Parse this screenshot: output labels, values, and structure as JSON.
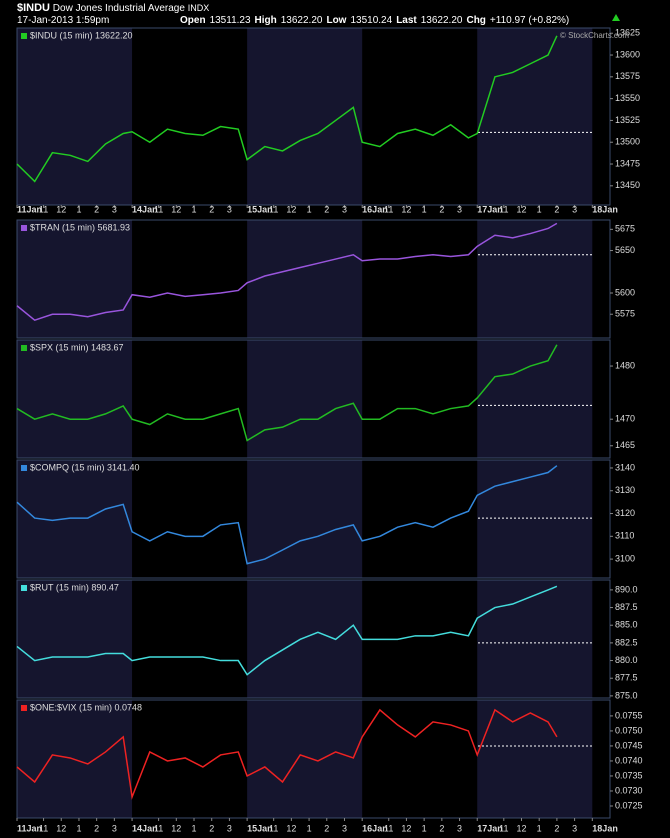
{
  "header": {
    "symbol": "$INDU",
    "name": "Dow Jones Industrial Average",
    "exchange": "INDX",
    "datetime": "17-Jan-2013 1:59pm",
    "quote": [
      {
        "label": "Open",
        "value": "13511.23"
      },
      {
        "label": "High",
        "value": "13622.20"
      },
      {
        "label": "Low",
        "value": "13510.24"
      },
      {
        "label": "Last",
        "value": "13622.20"
      },
      {
        "label": "Chg",
        "value": "+110.97 (+0.82%)"
      }
    ],
    "watermark": "© StockCharts.com"
  },
  "chart_data": [
    {
      "type": "line",
      "x": [
        0,
        1,
        2,
        3,
        4,
        5,
        6,
        6.5,
        7.5,
        8.5,
        9.5,
        10.5,
        11.5,
        12.5,
        13,
        14,
        15,
        16,
        17,
        18,
        19,
        19.5,
        20.5,
        21.5,
        22.5,
        23.5,
        24.5,
        25.5,
        26,
        27,
        28,
        29,
        30,
        30.5
      ],
      "xlim": [
        0,
        33.5
      ],
      "xticks": [
        {
          "value": 0,
          "label": "11Jan"
        },
        {
          "value": 1.5,
          "label": "11"
        },
        {
          "value": 2.5,
          "label": "12"
        },
        {
          "value": 3.5,
          "label": "1"
        },
        {
          "value": 4.5,
          "label": "2"
        },
        {
          "value": 5.5,
          "label": "3"
        },
        {
          "value": 6.5,
          "label": "14Jan"
        },
        {
          "value": 8,
          "label": "11"
        },
        {
          "value": 9,
          "label": "12"
        },
        {
          "value": 10,
          "label": "1"
        },
        {
          "value": 11,
          "label": "2"
        },
        {
          "value": 12,
          "label": "3"
        },
        {
          "value": 13,
          "label": "15Jan"
        },
        {
          "value": 14.5,
          "label": "11"
        },
        {
          "value": 15.5,
          "label": "12"
        },
        {
          "value": 16.5,
          "label": "1"
        },
        {
          "value": 17.5,
          "label": "2"
        },
        {
          "value": 18.5,
          "label": "3"
        },
        {
          "value": 19.5,
          "label": "16Jan"
        },
        {
          "value": 21,
          "label": "11"
        },
        {
          "value": 22,
          "label": "12"
        },
        {
          "value": 23,
          "label": "1"
        },
        {
          "value": 24,
          "label": "2"
        },
        {
          "value": 25,
          "label": "3"
        },
        {
          "value": 26,
          "label": "17Jan"
        },
        {
          "value": 27.5,
          "label": "11"
        },
        {
          "value": 28.5,
          "label": "12"
        },
        {
          "value": 29.5,
          "label": "1"
        },
        {
          "value": 30.5,
          "label": "2"
        },
        {
          "value": 31.5,
          "label": "3"
        },
        {
          "value": 32.5,
          "label": "18Jan"
        }
      ],
      "ylim": [
        13428,
        13631
      ],
      "yticks": [
        13450,
        13475,
        13500,
        13525,
        13550,
        13575,
        13600,
        13625
      ],
      "reference": 13511.23,
      "series": [
        {
          "name": "$INDU (15 min) 13622.20",
          "color": "#22cc22",
          "values": [
            13475,
            13455,
            13488,
            13485,
            13478,
            13498,
            13510,
            13512,
            13500,
            13515,
            13510,
            13508,
            13518,
            13515,
            13480,
            13495,
            13490,
            13502,
            13510,
            13525,
            13540,
            13500,
            13495,
            13510,
            13515,
            13508,
            13520,
            13505,
            13510,
            13575,
            13580,
            13590,
            13600,
            13622
          ]
        }
      ]
    },
    {
      "type": "line",
      "x": [
        0,
        1,
        2,
        3,
        4,
        5,
        6,
        6.5,
        7.5,
        8.5,
        9.5,
        10.5,
        11.5,
        12.5,
        13,
        14,
        15,
        16,
        17,
        18,
        19,
        19.5,
        20.5,
        21.5,
        22.5,
        23.5,
        24.5,
        25.5,
        26,
        27,
        28,
        29,
        30,
        30.5
      ],
      "xlim": [
        0,
        33.5
      ],
      "ylim": [
        5547,
        5686
      ],
      "yticks": [
        5575,
        5600,
        5650,
        5675
      ],
      "reference": 5645,
      "series": [
        {
          "name": "$TRAN (15 min) 5681.93",
          "color": "#9955dd",
          "values": [
            5585,
            5568,
            5575,
            5575,
            5572,
            5577,
            5580,
            5598,
            5595,
            5600,
            5596,
            5598,
            5600,
            5603,
            5612,
            5620,
            5625,
            5630,
            5635,
            5640,
            5645,
            5638,
            5640,
            5640,
            5643,
            5645,
            5643,
            5645,
            5655,
            5668,
            5665,
            5670,
            5676,
            5682
          ]
        }
      ]
    },
    {
      "type": "line",
      "x": [
        0,
        1,
        2,
        3,
        4,
        5,
        6,
        6.5,
        7.5,
        8.5,
        9.5,
        10.5,
        11.5,
        12.5,
        13,
        14,
        15,
        16,
        17,
        18,
        19,
        19.5,
        20.5,
        21.5,
        22.5,
        23.5,
        24.5,
        25.5,
        26,
        27,
        28,
        29,
        30,
        30.5
      ],
      "xlim": [
        0,
        33.5
      ],
      "ylim": [
        1462.7,
        1484.9
      ],
      "yticks": [
        1465,
        1470,
        1480
      ],
      "reference": 1472.6,
      "series": [
        {
          "name": "$SPX (15 min) 1483.67",
          "color": "#22bb22",
          "values": [
            1472,
            1470,
            1471,
            1470,
            1470,
            1471,
            1472.5,
            1470,
            1469,
            1471,
            1470,
            1470,
            1471,
            1472,
            1466,
            1468,
            1468.5,
            1470,
            1470,
            1472,
            1473,
            1470,
            1470,
            1472,
            1472,
            1471,
            1472,
            1472.5,
            1474,
            1478,
            1478.5,
            1480,
            1481,
            1484
          ]
        }
      ]
    },
    {
      "type": "line",
      "x": [
        0,
        1,
        2,
        3,
        4,
        5,
        6,
        6.5,
        7.5,
        8.5,
        9.5,
        10.5,
        11.5,
        12.5,
        13,
        14,
        15,
        16,
        17,
        18,
        19,
        19.5,
        20.5,
        21.5,
        22.5,
        23.5,
        24.5,
        25.5,
        26,
        27,
        28,
        29,
        30,
        30.5
      ],
      "xlim": [
        0,
        33.5
      ],
      "ylim": [
        3091.7,
        3143.5
      ],
      "yticks": [
        3100,
        3110,
        3120,
        3130,
        3140
      ],
      "reference": 3118,
      "series": [
        {
          "name": "$COMPQ (15 min) 3141.40",
          "color": "#3388dd",
          "values": [
            3125,
            3118,
            3117,
            3118,
            3118,
            3122,
            3124,
            3112,
            3108,
            3112,
            3110,
            3110,
            3115,
            3116,
            3098,
            3100,
            3104,
            3108,
            3110,
            3113,
            3115,
            3108,
            3110,
            3114,
            3116,
            3114,
            3118,
            3121,
            3128,
            3132,
            3134,
            3136,
            3138,
            3141
          ]
        }
      ]
    },
    {
      "type": "line",
      "x": [
        0,
        1,
        2,
        3,
        4,
        5,
        6,
        6.5,
        7.5,
        8.5,
        9.5,
        10.5,
        11.5,
        12.5,
        13,
        14,
        15,
        16,
        17,
        18,
        19,
        19.5,
        20.5,
        21.5,
        22.5,
        23.5,
        24.5,
        25.5,
        26,
        27,
        28,
        29,
        30,
        30.5
      ],
      "xlim": [
        0,
        33.5
      ],
      "ylim": [
        874.7,
        891.4
      ],
      "yticks": [
        {
          "value": 875,
          "label": "875.0"
        },
        877.5,
        {
          "value": 880,
          "label": "880.0"
        },
        882.5,
        {
          "value": 885,
          "label": "885.0"
        },
        887.5,
        {
          "value": 890,
          "label": "890.0"
        }
      ],
      "reference": 882.5,
      "series": [
        {
          "name": "$RUT (15 min) 890.47",
          "color": "#44dddd",
          "values": [
            882,
            880,
            880.5,
            880.5,
            880.5,
            881,
            881,
            880,
            880.5,
            880.5,
            880.5,
            880.5,
            880,
            880,
            878,
            880,
            881.5,
            883,
            884,
            883,
            885,
            883,
            883,
            883,
            883.5,
            883.5,
            884,
            883.5,
            886,
            887.5,
            888,
            889,
            890,
            890.5
          ]
        }
      ]
    },
    {
      "type": "line",
      "x": [
        0,
        1,
        2,
        3,
        4,
        5,
        6,
        6.5,
        7.5,
        8.5,
        9.5,
        10.5,
        11.5,
        12.5,
        13,
        14,
        15,
        16,
        17,
        18,
        19,
        19.5,
        20.5,
        21.5,
        22.5,
        23.5,
        24.5,
        25.5,
        26,
        27,
        28,
        29,
        30,
        30.5
      ],
      "xlim": [
        0,
        33.5
      ],
      "xticks": [
        {
          "value": 0,
          "label": "11Jan"
        },
        {
          "value": 1.5,
          "label": "11"
        },
        {
          "value": 2.5,
          "label": "12"
        },
        {
          "value": 3.5,
          "label": "1"
        },
        {
          "value": 4.5,
          "label": "2"
        },
        {
          "value": 5.5,
          "label": "3"
        },
        {
          "value": 6.5,
          "label": "14Jan"
        },
        {
          "value": 8,
          "label": "11"
        },
        {
          "value": 9,
          "label": "12"
        },
        {
          "value": 10,
          "label": "1"
        },
        {
          "value": 11,
          "label": "2"
        },
        {
          "value": 12,
          "label": "3"
        },
        {
          "value": 13,
          "label": "15Jan"
        },
        {
          "value": 14.5,
          "label": "11"
        },
        {
          "value": 15.5,
          "label": "12"
        },
        {
          "value": 16.5,
          "label": "1"
        },
        {
          "value": 17.5,
          "label": "2"
        },
        {
          "value": 18.5,
          "label": "3"
        },
        {
          "value": 19.5,
          "label": "16Jan"
        },
        {
          "value": 21,
          "label": "11"
        },
        {
          "value": 22,
          "label": "12"
        },
        {
          "value": 23,
          "label": "1"
        },
        {
          "value": 24,
          "label": "2"
        },
        {
          "value": 25,
          "label": "3"
        },
        {
          "value": 26,
          "label": "17Jan"
        },
        {
          "value": 27.5,
          "label": "11"
        },
        {
          "value": 28.5,
          "label": "12"
        },
        {
          "value": 29.5,
          "label": "1"
        },
        {
          "value": 30.5,
          "label": "2"
        },
        {
          "value": 31.5,
          "label": "3"
        },
        {
          "value": 32.5,
          "label": "18Jan"
        }
      ],
      "ylim": [
        0.0721,
        0.07603
      ],
      "yticks": [
        0.0725,
        {
          "value": 0.073,
          "label": "0.0730"
        },
        0.0735,
        {
          "value": 0.074,
          "label": "0.0740"
        },
        0.0745,
        {
          "value": 0.075,
          "label": "0.0750"
        },
        0.0755
      ],
      "reference": 0.0745,
      "series": [
        {
          "name": "$ONE:$VIX (15 min) 0.0748",
          "color": "#ee2222",
          "values": [
            0.0738,
            0.0733,
            0.0742,
            0.0741,
            0.0739,
            0.0743,
            0.0748,
            0.0728,
            0.0743,
            0.074,
            0.0741,
            0.0738,
            0.0742,
            0.0743,
            0.0735,
            0.0738,
            0.0733,
            0.0742,
            0.074,
            0.0743,
            0.0741,
            0.0748,
            0.0757,
            0.0752,
            0.0748,
            0.0753,
            0.0752,
            0.075,
            0.0742,
            0.0757,
            0.0753,
            0.0756,
            0.0753,
            0.0748
          ]
        }
      ]
    }
  ]
}
